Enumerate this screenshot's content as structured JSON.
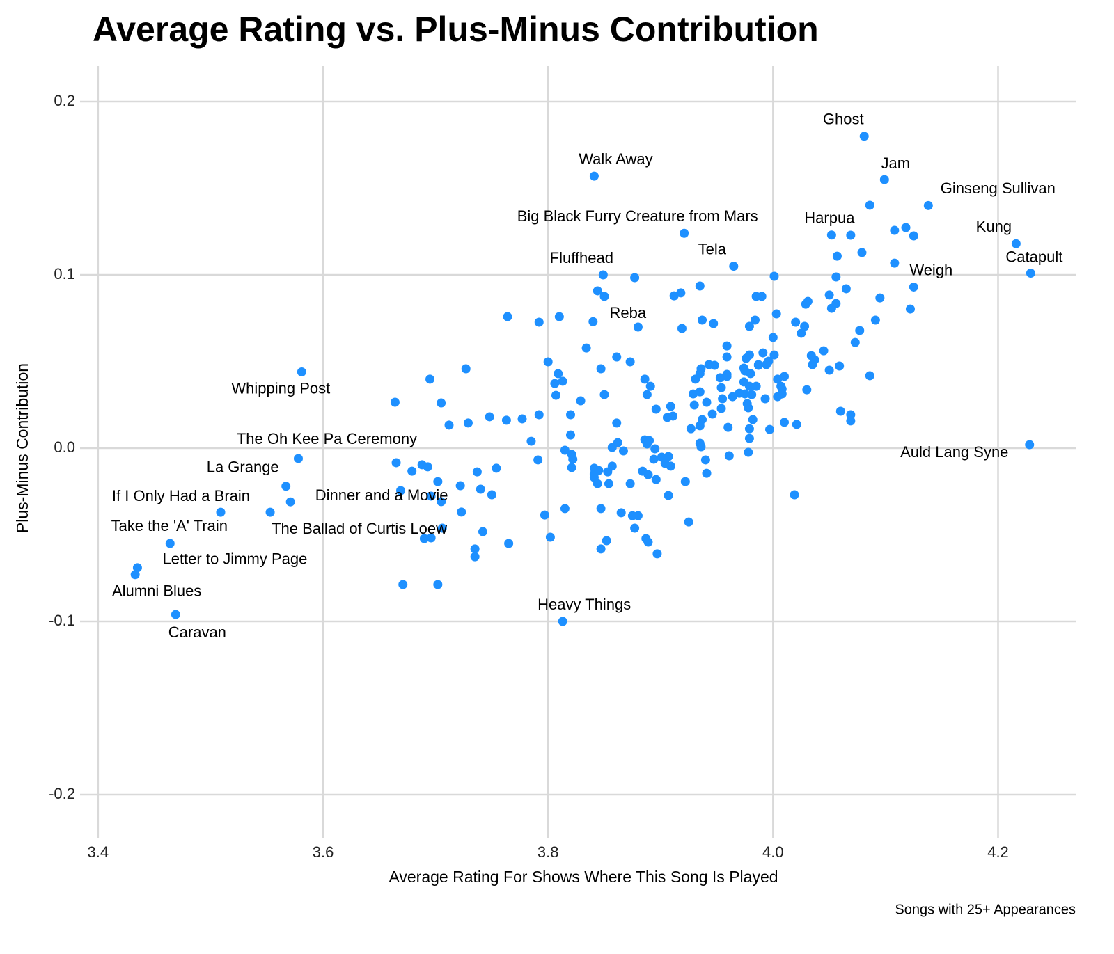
{
  "chart_data": {
    "type": "scatter",
    "title": "Average Rating vs. Plus-Minus Contribution",
    "x_label": "Average Rating For Shows Where This Song Is Played",
    "y_label": "Plus-Minus Contribution",
    "caption": "Songs with 25+ Appearances",
    "color": "#1e90ff",
    "grid": true,
    "xlim": [
      3.384,
      4.269
    ],
    "ylim": [
      -0.2253,
      0.2205
    ],
    "xticks": [
      3.4,
      3.6,
      3.8,
      {
        "value": 4,
        "label": "4.0"
      },
      4.2
    ],
    "yticks": [
      -0.2,
      -0.1,
      {
        "value": 0,
        "label": "0.0"
      },
      0.1,
      0.2
    ],
    "x": [
      4.081,
      3.841,
      4.099,
      4.138,
      3.921,
      4.052,
      4.216,
      3.965,
      4.229,
      3.849,
      4.125,
      3.84,
      3.581,
      3.578,
      3.567,
      3.509,
      3.571,
      3.553,
      3.464,
      3.435,
      3.433,
      3.469,
      3.813,
      4.228,
      3.664,
      3.695,
      3.705,
      3.727,
      3.712,
      3.729,
      3.748,
      3.764,
      3.763,
      3.777,
      3.792,
      3.792,
      3.81,
      3.8,
      3.809,
      3.806,
      3.813,
      3.807,
      3.82,
      3.829,
      3.834,
      3.847,
      3.861,
      3.85,
      3.861,
      3.873,
      3.886,
      3.891,
      3.888,
      3.896,
      3.909,
      3.906,
      3.911,
      3.877,
      3.85,
      3.844,
      3.88,
      3.912,
      3.918,
      3.919,
      3.935,
      3.937,
      3.947,
      3.936,
      3.931,
      3.935,
      3.943,
      3.948,
      3.929,
      3.935,
      3.93,
      3.941,
      3.946,
      3.954,
      3.955,
      3.959,
      3.959,
      3.959,
      3.964,
      3.97,
      3.975,
      3.979,
      3.976,
      3.975,
      3.98,
      3.974,
      3.979,
      3.981,
      3.977,
      3.978,
      3.982,
      3.987,
      3.991,
      3.985,
      3.987,
      3.985,
      3.99,
      3.984,
      3.979,
      4.001,
      4.003,
      4.0,
      4.001,
      3.994,
      3.996,
      4.004,
      4.007,
      4.004,
      4.008,
      4.008,
      4.01,
      3.993,
      4.01,
      3.997,
      4.02,
      4.025,
      4.028,
      4.029,
      4.031,
      4.034,
      4.035,
      4.037,
      4.03,
      4.045,
      4.021,
      4.019,
      4.05,
      4.052,
      4.056,
      4.05,
      4.059,
      4.057,
      4.056,
      4.065,
      4.069,
      4.079,
      4.077,
      4.073,
      4.086,
      4.091,
      4.095,
      4.086,
      4.108,
      4.118,
      4.125,
      4.108,
      4.122,
      4.06,
      4.069,
      4.069,
      3.665,
      3.679,
      3.688,
      3.693,
      3.702,
      3.669,
      3.696,
      3.705,
      3.722,
      3.737,
      3.754,
      3.74,
      3.75,
      3.723,
      3.706,
      3.742,
      3.696,
      3.69,
      3.735,
      3.735,
      3.765,
      3.671,
      3.702,
      3.785,
      3.791,
      3.815,
      3.82,
      3.821,
      3.822,
      3.821,
      3.841,
      3.841,
      3.853,
      3.857,
      3.857,
      3.845,
      3.841,
      3.844,
      3.854,
      3.873,
      3.862,
      3.867,
      3.886,
      3.89,
      3.888,
      3.895,
      3.894,
      3.901,
      3.907,
      3.904,
      3.909,
      3.884,
      3.889,
      3.896,
      3.922,
      3.935,
      3.936,
      3.94,
      3.941,
      3.961,
      3.978,
      3.979,
      3.979,
      3.96,
      3.797,
      3.815,
      3.802,
      3.847,
      3.865,
      3.875,
      3.88,
      3.877,
      3.887,
      3.889,
      3.897,
      3.852,
      3.847,
      3.925,
      3.907,
      3.927,
      3.937,
      3.935,
      3.954,
      3.953,
      3.959,
      3.974
    ],
    "values": [
      0.18,
      0.157,
      0.155,
      0.14,
      0.124,
      0.123,
      0.118,
      0.105,
      0.101,
      0.1,
      0.093,
      0.073,
      0.044,
      -0.006,
      -0.022,
      -0.037,
      -0.031,
      -0.037,
      -0.055,
      -0.069,
      -0.073,
      -0.096,
      -0.1,
      0.002,
      0.0265,
      0.0398,
      0.0261,
      0.0458,
      0.0133,
      0.0145,
      0.0181,
      0.0759,
      0.0161,
      0.0169,
      0.0193,
      0.0727,
      0.0759,
      0.0498,
      0.043,
      0.0373,
      0.0386,
      0.0305,
      0.0193,
      0.0273,
      0.0578,
      0.0458,
      0.0526,
      0.0309,
      0.0145,
      0.0498,
      0.0398,
      0.0357,
      0.0309,
      0.0225,
      0.0241,
      0.0177,
      0.0185,
      0.0984,
      0.0876,
      0.0908,
      0.0699,
      0.0879,
      0.0896,
      0.0691,
      0.0936,
      0.0739,
      0.0719,
      0.0458,
      0.0398,
      0.043,
      0.0482,
      0.0478,
      0.0313,
      0.0325,
      0.0249,
      0.0265,
      0.0197,
      0.0229,
      0.0285,
      0.059,
      0.0526,
      0.0426,
      0.0297,
      0.0317,
      0.0313,
      0.0538,
      0.0518,
      0.0446,
      0.043,
      0.0382,
      0.0357,
      0.0309,
      0.0257,
      0.0233,
      0.0165,
      0.0482,
      0.055,
      0.0357,
      0.0478,
      0.0876,
      0.0876,
      0.0739,
      0.0703,
      0.0992,
      0.0775,
      0.0639,
      0.0538,
      0.0482,
      0.0502,
      0.0398,
      0.0357,
      0.0297,
      0.0341,
      0.0313,
      0.0414,
      0.0285,
      0.0149,
      0.0108,
      0.0727,
      0.0663,
      0.0703,
      0.0831,
      0.0847,
      0.0534,
      0.0482,
      0.051,
      0.0337,
      0.0562,
      0.0137,
      -0.0269,
      0.0884,
      0.0807,
      0.0835,
      0.045,
      0.0474,
      0.1108,
      0.0988,
      0.092,
      0.1229,
      0.1129,
      0.0679,
      0.061,
      0.0418,
      0.0739,
      0.0867,
      0.1402,
      0.1257,
      0.1273,
      0.1225,
      0.1068,
      0.0803,
      0.0213,
      0.0193,
      0.0157,
      -0.0084,
      -0.0133,
      -0.0096,
      -0.0108,
      -0.0193,
      -0.0245,
      -0.0277,
      -0.0309,
      -0.0217,
      -0.0137,
      -0.0116,
      -0.0237,
      -0.0269,
      -0.0369,
      -0.0462,
      -0.0482,
      -0.0518,
      -0.0522,
      -0.0582,
      -0.0627,
      -0.055,
      -0.0787,
      -0.0787,
      0.004,
      -0.0068,
      -0.0012,
      0.0076,
      -0.0036,
      -0.0064,
      -0.0112,
      -0.0116,
      -0.0149,
      -0.0137,
      0.0004,
      -0.0104,
      -0.0129,
      -0.0169,
      -0.0205,
      -0.0205,
      -0.0205,
      0.0032,
      -0.0016,
      0.0048,
      0.0044,
      0.0024,
      -0.0004,
      -0.0064,
      -0.0052,
      -0.0048,
      -0.0088,
      -0.0104,
      -0.0133,
      -0.0153,
      -0.0181,
      -0.0193,
      0.0028,
      0.0008,
      -0.0068,
      -0.0145,
      -0.0044,
      -0.0024,
      0.0056,
      0.0112,
      0.012,
      -0.0386,
      -0.0349,
      -0.0514,
      -0.0349,
      -0.0373,
      -0.039,
      -0.039,
      -0.0462,
      -0.0522,
      -0.0542,
      -0.061,
      -0.0534,
      -0.0582,
      -0.0426,
      -0.0273,
      0.0112,
      0.0165,
      0.0129,
      0.0349,
      0.0406,
      0.0414,
      0.0462
    ],
    "labels": [
      "Ghost",
      "Walk Away",
      "Jam",
      "Ginseng Sullivan",
      "Big Black Furry Creature from Mars",
      "Harpua",
      "Kung",
      "Tela",
      "Catapult",
      "Fluffhead",
      "Weigh",
      "Reba",
      "Whipping Post",
      "The Oh Kee Pa Ceremony",
      "La Grange",
      "If I Only Had a Brain",
      "Dinner and a Movie",
      "The Ballad of Curtis Loew",
      "Take the 'A' Train",
      "Letter to Jimmy Page",
      "Alumni Blues",
      "Caravan",
      "Heavy Things",
      "Auld Lang Syne"
    ]
  }
}
